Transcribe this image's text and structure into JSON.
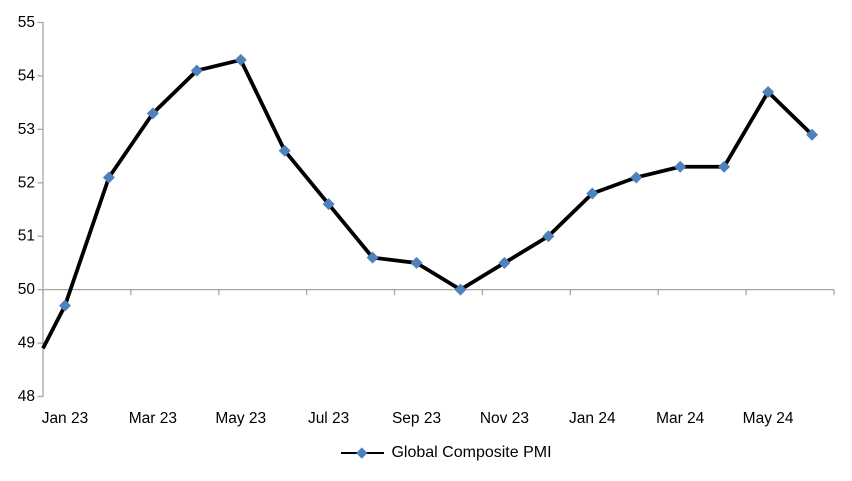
{
  "chart_data": {
    "type": "line",
    "title": "",
    "x": [
      "Jan 23",
      "Feb 23",
      "Mar 23",
      "Apr 23",
      "May 23",
      "Jun 23",
      "Jul 23",
      "Aug 23",
      "Sep 23",
      "Oct 23",
      "Nov 23",
      "Dec 23",
      "Jan 24",
      "Feb 24",
      "Mar 24",
      "Apr 24",
      "May 24",
      "Jun 24"
    ],
    "series": [
      {
        "name": "Global Composite PMI",
        "values": [
          49.7,
          52.1,
          53.3,
          54.1,
          54.3,
          52.6,
          51.6,
          50.6,
          50.5,
          50.0,
          50.5,
          51.0,
          51.8,
          52.1,
          52.3,
          52.3,
          53.7,
          52.9
        ],
        "line_color": "#000000",
        "marker": "diamond",
        "marker_color": "#4F81BD"
      }
    ],
    "ylim": [
      48,
      55
    ],
    "y_ticks": [
      "55",
      "54",
      "53",
      "52",
      "51",
      "50",
      "49",
      "48"
    ],
    "x_tick_labels": [
      "Jan 23",
      "Mar 23",
      "May 23",
      "Jul 23",
      "Sep 23",
      "Nov 23",
      "Jan 24",
      "Mar 24",
      "May 24"
    ],
    "category_axis_crosses_at": 50,
    "left_edge_entry_value": 48.9,
    "grid": false,
    "legend_position": "bottom",
    "axis_color": "#A6A6A6",
    "background": "#FFFFFF"
  },
  "legend": {
    "label": "Global Composite PMI"
  }
}
